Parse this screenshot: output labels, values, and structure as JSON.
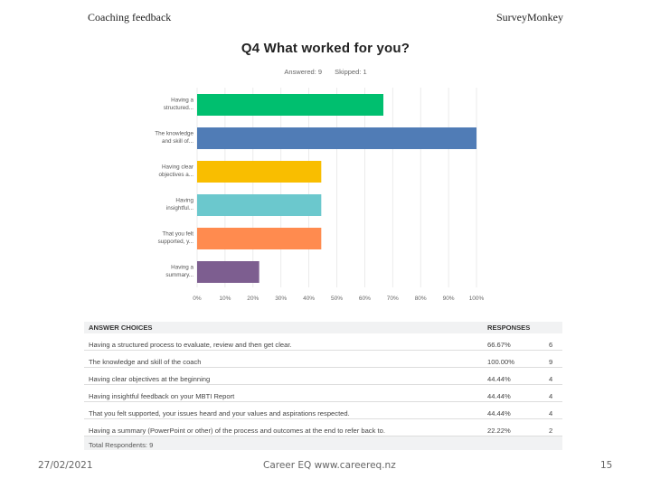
{
  "header": {
    "left": "Coaching feedback",
    "right": "SurveyMonkey"
  },
  "question": {
    "title": "Q4 What worked for you?",
    "answered": "Answered: 9",
    "skipped": "Skipped: 1"
  },
  "colors": {
    "bars": [
      "#00bf6f",
      "#507cb6",
      "#f9be00",
      "#6bc8cd",
      "#ff8b4f",
      "#7d5e90"
    ]
  },
  "chart_data": {
    "type": "bar",
    "orientation": "horizontal",
    "categories": [
      [
        "Having a",
        "structured..."
      ],
      [
        "The knowledge",
        "and skill of..."
      ],
      [
        "Having clear",
        "objectives a..."
      ],
      [
        "Having",
        "insightful..."
      ],
      [
        "That you felt",
        "supported, y..."
      ],
      [
        "Having a",
        "summary..."
      ]
    ],
    "values": [
      66.67,
      100.0,
      44.44,
      44.44,
      44.44,
      22.22
    ],
    "xlim": [
      0,
      100
    ],
    "xticks": [
      "0%",
      "10%",
      "20%",
      "30%",
      "40%",
      "50%",
      "60%",
      "70%",
      "80%",
      "90%",
      "100%"
    ],
    "grid": true
  },
  "table": {
    "headers": [
      "ANSWER CHOICES",
      "RESPONSES"
    ],
    "rows": [
      {
        "choice": "Having a structured process to evaluate, review and then get clear.",
        "pct": "66.67%",
        "count": "6"
      },
      {
        "choice": "The knowledge and skill of the coach",
        "pct": "100.00%",
        "count": "9"
      },
      {
        "choice": "Having clear objectives at the beginning",
        "pct": "44.44%",
        "count": "4"
      },
      {
        "choice": "Having insightful feedback on your MBTI Report",
        "pct": "44.44%",
        "count": "4"
      },
      {
        "choice": "That you felt supported, your issues heard and your values and aspirations respected.",
        "pct": "44.44%",
        "count": "4"
      },
      {
        "choice": "Having a summary (PowerPoint or other) of the process and outcomes at the end to refer back to.",
        "pct": "22.22%",
        "count": "2"
      }
    ],
    "total": "Total Respondents: 9"
  },
  "footer": {
    "date": "27/02/2021",
    "center": "Career EQ www.careereq.nz",
    "page": "15"
  }
}
